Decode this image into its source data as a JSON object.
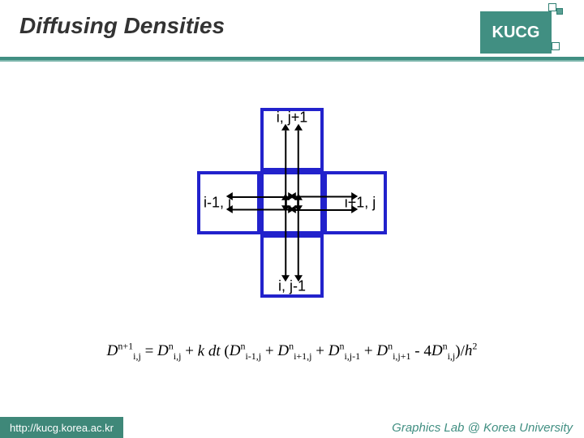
{
  "colors": {
    "bg": "#ffffff",
    "accent": "#418f82",
    "accent_light": "#7fb8ae",
    "title": "#333333",
    "cell_border": "#2222cc",
    "footer_left_bg": "#3f8879"
  },
  "header": {
    "title": "Diffusing Densities",
    "logo_text": "KUCG"
  },
  "stencil": {
    "cell_size": 78,
    "border_width": 4,
    "labels": {
      "top": "i, j+1",
      "left": "i-1, j",
      "center": "i, j",
      "right": "i+1, j",
      "bottom": "i, j-1"
    }
  },
  "equation": {
    "lhs_base": "D",
    "lhs_sup": "n+1",
    "lhs_sub": "i,j",
    "eq": " = ",
    "terms": [
      {
        "base": "D",
        "sup": "n",
        "sub": "i,j"
      },
      {
        "plain": " + "
      },
      {
        "plain": "k dt",
        "italic": true
      },
      {
        "plain": " ("
      },
      {
        "base": "D",
        "sup": "n",
        "sub": "i-1,j"
      },
      {
        "plain": " + "
      },
      {
        "base": "D",
        "sup": "n",
        "sub": "i+1,j"
      },
      {
        "plain": " + "
      },
      {
        "base": "D",
        "sup": "n",
        "sub": "i,j-1"
      },
      {
        "plain": " + "
      },
      {
        "base": "D",
        "sup": "n",
        "sub": "i,j+1"
      },
      {
        "plain": " - 4"
      },
      {
        "base": "D",
        "sup": "n",
        "sub": "i,j"
      },
      {
        "plain": ")/"
      },
      {
        "base": "h",
        "sup": "2",
        "italic": true
      }
    ]
  },
  "footer": {
    "left": "http://kucg.korea.ac.kr",
    "right": "Graphics Lab @ Korea University"
  }
}
